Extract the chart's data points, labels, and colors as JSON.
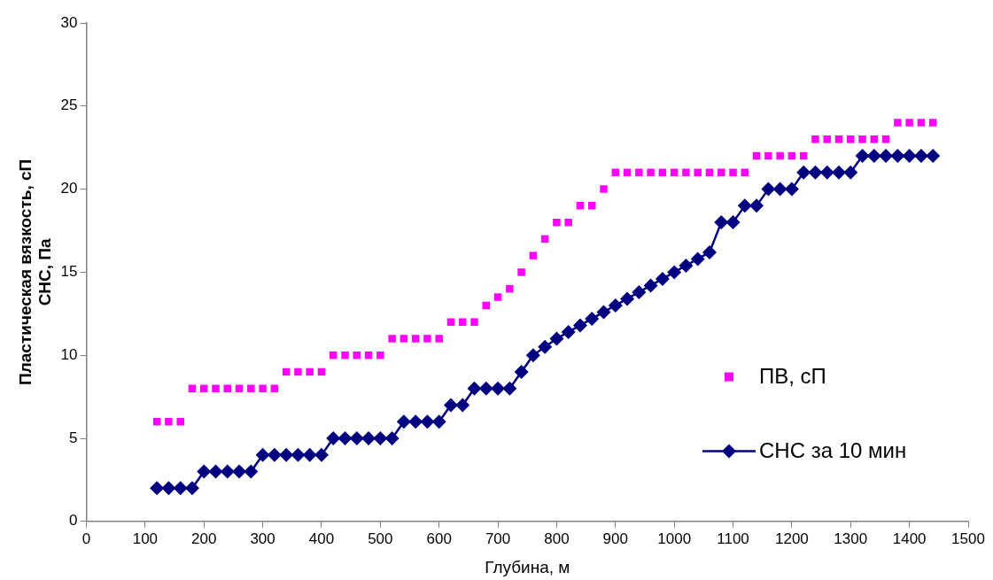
{
  "chart_data": {
    "type": "line",
    "xlabel": "Глубина, м",
    "ylabel": "Пластическая вязкость, сП\nСНС, Па",
    "x": [
      120,
      140,
      160,
      180,
      200,
      220,
      240,
      260,
      280,
      300,
      320,
      340,
      360,
      380,
      400,
      420,
      440,
      460,
      480,
      500,
      520,
      540,
      560,
      580,
      600,
      620,
      640,
      660,
      680,
      700,
      720,
      740,
      760,
      780,
      800,
      820,
      840,
      860,
      880,
      900,
      920,
      940,
      960,
      980,
      1000,
      1020,
      1040,
      1060,
      1080,
      1100,
      1120,
      1140,
      1160,
      1180,
      1200,
      1220,
      1240,
      1260,
      1280,
      1300,
      1320,
      1340,
      1360,
      1380,
      1400,
      1420,
      1440
    ],
    "series": [
      {
        "name": "ПВ, сП",
        "type": "scatter",
        "marker": "square",
        "color": "#ff00ff",
        "values": [
          6,
          6,
          6,
          8,
          8,
          8,
          8,
          8,
          8,
          8,
          8,
          9,
          9,
          9,
          9,
          10,
          10,
          10,
          10,
          10,
          11,
          11,
          11,
          11,
          11,
          12,
          12,
          12,
          13,
          13.5,
          14,
          15,
          16,
          17,
          18,
          18,
          19,
          19,
          20,
          21,
          21,
          21,
          21,
          21,
          21,
          21,
          21,
          21,
          21,
          21,
          21,
          22,
          22,
          22,
          22,
          22,
          23,
          23,
          23,
          23,
          23,
          23,
          23,
          24,
          24,
          24,
          24
        ]
      },
      {
        "name": "СНС за 10 мин",
        "type": "line",
        "marker": "diamond",
        "line_style": "solid",
        "color": "#000080",
        "values": [
          2,
          2,
          2,
          2,
          3,
          3,
          3,
          3,
          3,
          4,
          4,
          4,
          4,
          4,
          4,
          5,
          5,
          5,
          5,
          5,
          5,
          6,
          6,
          6,
          6,
          7,
          7,
          8,
          8,
          8,
          8,
          9,
          10,
          10.5,
          11,
          11.4,
          11.8,
          12.2,
          12.6,
          13,
          13.4,
          13.8,
          14.2,
          14.6,
          15,
          15.4,
          15.8,
          16.2,
          18,
          18,
          19,
          19,
          20,
          20,
          20,
          21,
          21,
          21,
          21,
          21,
          22,
          22,
          22,
          22,
          22,
          22,
          22
        ]
      }
    ],
    "xlim": [
      0,
      1500
    ],
    "xticks": [
      0,
      100,
      200,
      300,
      400,
      500,
      600,
      700,
      800,
      900,
      1000,
      1100,
      1200,
      1300,
      1400,
      1500
    ],
    "ylim": [
      0,
      30
    ],
    "yticks": [
      0,
      5,
      10,
      15,
      20,
      25,
      30
    ],
    "grid": false,
    "legend": "right"
  }
}
